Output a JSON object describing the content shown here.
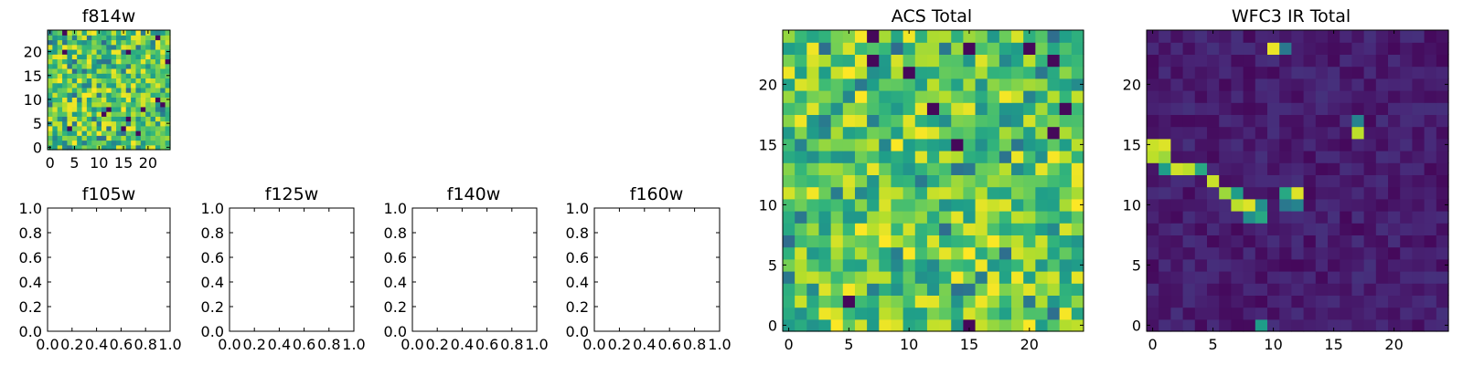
{
  "chart_data": [
    {
      "id": "f814w",
      "type": "heatmap",
      "title": "f814w",
      "colormap": "viridis",
      "grid_size": 25,
      "pattern": "noise_high",
      "seed": 11,
      "xlim": [
        -0.5,
        24.5
      ],
      "ylim": [
        -0.5,
        24.5
      ],
      "xticks": [
        0,
        5,
        10,
        15,
        20
      ],
      "yticks": [
        0,
        5,
        10,
        15,
        20
      ],
      "xtick_labels": [
        "0",
        "5",
        "10",
        "15",
        "20"
      ],
      "ytick_labels": [
        "0",
        "5",
        "10",
        "15",
        "20"
      ]
    },
    {
      "id": "f105w",
      "type": "empty",
      "title": "f105w",
      "xlim": [
        0,
        1
      ],
      "ylim": [
        0,
        1
      ],
      "xtick_labels": [
        "0.0",
        "0.2",
        "0.4",
        "0.6",
        "0.8",
        "1.0"
      ],
      "ytick_labels": [
        "0.0",
        "0.2",
        "0.4",
        "0.6",
        "0.8",
        "1.0"
      ]
    },
    {
      "id": "f125w",
      "type": "empty",
      "title": "f125w",
      "xlim": [
        0,
        1
      ],
      "ylim": [
        0,
        1
      ],
      "xtick_labels": [
        "0.0",
        "0.2",
        "0.4",
        "0.6",
        "0.8",
        "1.0"
      ],
      "ytick_labels": [
        "0.0",
        "0.2",
        "0.4",
        "0.6",
        "0.8",
        "1.0"
      ]
    },
    {
      "id": "f140w",
      "type": "empty",
      "title": "f140w",
      "xlim": [
        0,
        1
      ],
      "ylim": [
        0,
        1
      ],
      "xtick_labels": [
        "0.0",
        "0.2",
        "0.4",
        "0.6",
        "0.8",
        "1.0"
      ],
      "ytick_labels": [
        "0.0",
        "0.2",
        "0.4",
        "0.6",
        "0.8",
        "1.0"
      ]
    },
    {
      "id": "f160w",
      "type": "empty",
      "title": "f160w",
      "xlim": [
        0,
        1
      ],
      "ylim": [
        0,
        1
      ],
      "xtick_labels": [
        "0.0",
        "0.2",
        "0.4",
        "0.6",
        "0.8",
        "1.0"
      ],
      "ytick_labels": [
        "0.0",
        "0.2",
        "0.4",
        "0.6",
        "0.8",
        "1.0"
      ]
    },
    {
      "id": "acs-total",
      "type": "heatmap",
      "title": "ACS Total",
      "colormap": "viridis",
      "grid_size": 25,
      "pattern": "noise_high",
      "seed": 42,
      "xlim": [
        -0.5,
        24.5
      ],
      "ylim": [
        -0.5,
        24.5
      ],
      "xticks": [
        0,
        5,
        10,
        15,
        20
      ],
      "yticks": [
        0,
        5,
        10,
        15,
        20
      ],
      "xtick_labels": [
        "0",
        "5",
        "10",
        "15",
        "20"
      ],
      "ytick_labels": [
        "0",
        "5",
        "10",
        "15",
        "20"
      ]
    },
    {
      "id": "wfc3-ir-total",
      "type": "heatmap",
      "title": "WFC3 IR Total",
      "colormap": "viridis",
      "grid_size": 25,
      "pattern": "streak",
      "seed": 7,
      "hot_pixels": [
        {
          "x": 10,
          "y": 23,
          "v": 0.97
        },
        {
          "x": 11,
          "y": 23,
          "v": 0.4
        },
        {
          "x": 17,
          "y": 17,
          "v": 0.45
        },
        {
          "x": 17,
          "y": 16,
          "v": 0.9
        },
        {
          "x": 0,
          "y": 15,
          "v": 0.92
        },
        {
          "x": 1,
          "y": 15,
          "v": 0.95
        },
        {
          "x": 0,
          "y": 14,
          "v": 0.9
        },
        {
          "x": 1,
          "y": 14,
          "v": 0.85
        },
        {
          "x": 2,
          "y": 13,
          "v": 0.93
        },
        {
          "x": 3,
          "y": 13,
          "v": 0.9
        },
        {
          "x": 1,
          "y": 13,
          "v": 0.55
        },
        {
          "x": 4,
          "y": 13,
          "v": 0.6
        },
        {
          "x": 5,
          "y": 12,
          "v": 0.92
        },
        {
          "x": 6,
          "y": 11,
          "v": 0.85
        },
        {
          "x": 7,
          "y": 11,
          "v": 0.55
        },
        {
          "x": 8,
          "y": 10,
          "v": 0.95
        },
        {
          "x": 7,
          "y": 10,
          "v": 0.9
        },
        {
          "x": 9,
          "y": 10,
          "v": 0.5
        },
        {
          "x": 8,
          "y": 9,
          "v": 0.5
        },
        {
          "x": 9,
          "y": 9,
          "v": 0.6
        },
        {
          "x": 11,
          "y": 11,
          "v": 0.6
        },
        {
          "x": 12,
          "y": 11,
          "v": 0.95
        },
        {
          "x": 11,
          "y": 10,
          "v": 0.4
        },
        {
          "x": 12,
          "y": 10,
          "v": 0.45
        },
        {
          "x": 9,
          "y": -0.2,
          "v": 0.55
        }
      ],
      "xlim": [
        -0.5,
        24.5
      ],
      "ylim": [
        -0.5,
        24.5
      ],
      "xticks": [
        0,
        5,
        10,
        15,
        20
      ],
      "yticks": [
        0,
        5,
        10,
        15,
        20
      ],
      "xtick_labels": [
        "0",
        "5",
        "10",
        "15",
        "20"
      ],
      "ytick_labels": [
        "0",
        "5",
        "10",
        "15",
        "20"
      ]
    }
  ]
}
